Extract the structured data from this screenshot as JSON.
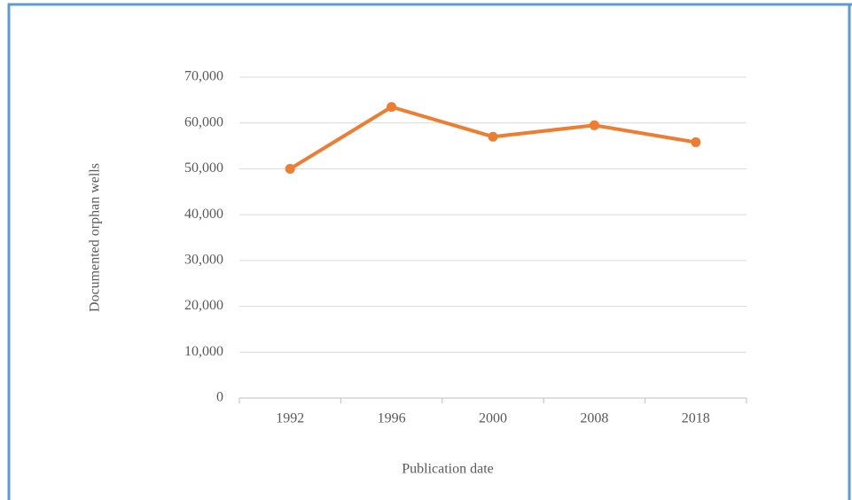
{
  "chart_data": {
    "type": "line",
    "categories": [
      "1992",
      "1996",
      "2000",
      "2008",
      "2018"
    ],
    "series": [
      {
        "name": "Documented orphan wells",
        "color": "#ed7d31",
        "values": [
          50000,
          63500,
          57000,
          59500,
          55800
        ]
      }
    ],
    "ylabel": "Documented orphan wells",
    "xlabel": "Publication date",
    "ylim": [
      0,
      70000
    ],
    "yticks": [
      0,
      {
        "value": 10000,
        "label": "10,000"
      },
      {
        "value": 20000,
        "label": "20,000"
      },
      {
        "value": 30000,
        "label": "30,000"
      },
      {
        "value": 40000,
        "label": "40,000"
      },
      {
        "value": 50000,
        "label": "50,000"
      },
      {
        "value": 60000,
        "label": "60,000"
      },
      {
        "value": 70000,
        "label": "70,000"
      }
    ],
    "grid": true
  }
}
